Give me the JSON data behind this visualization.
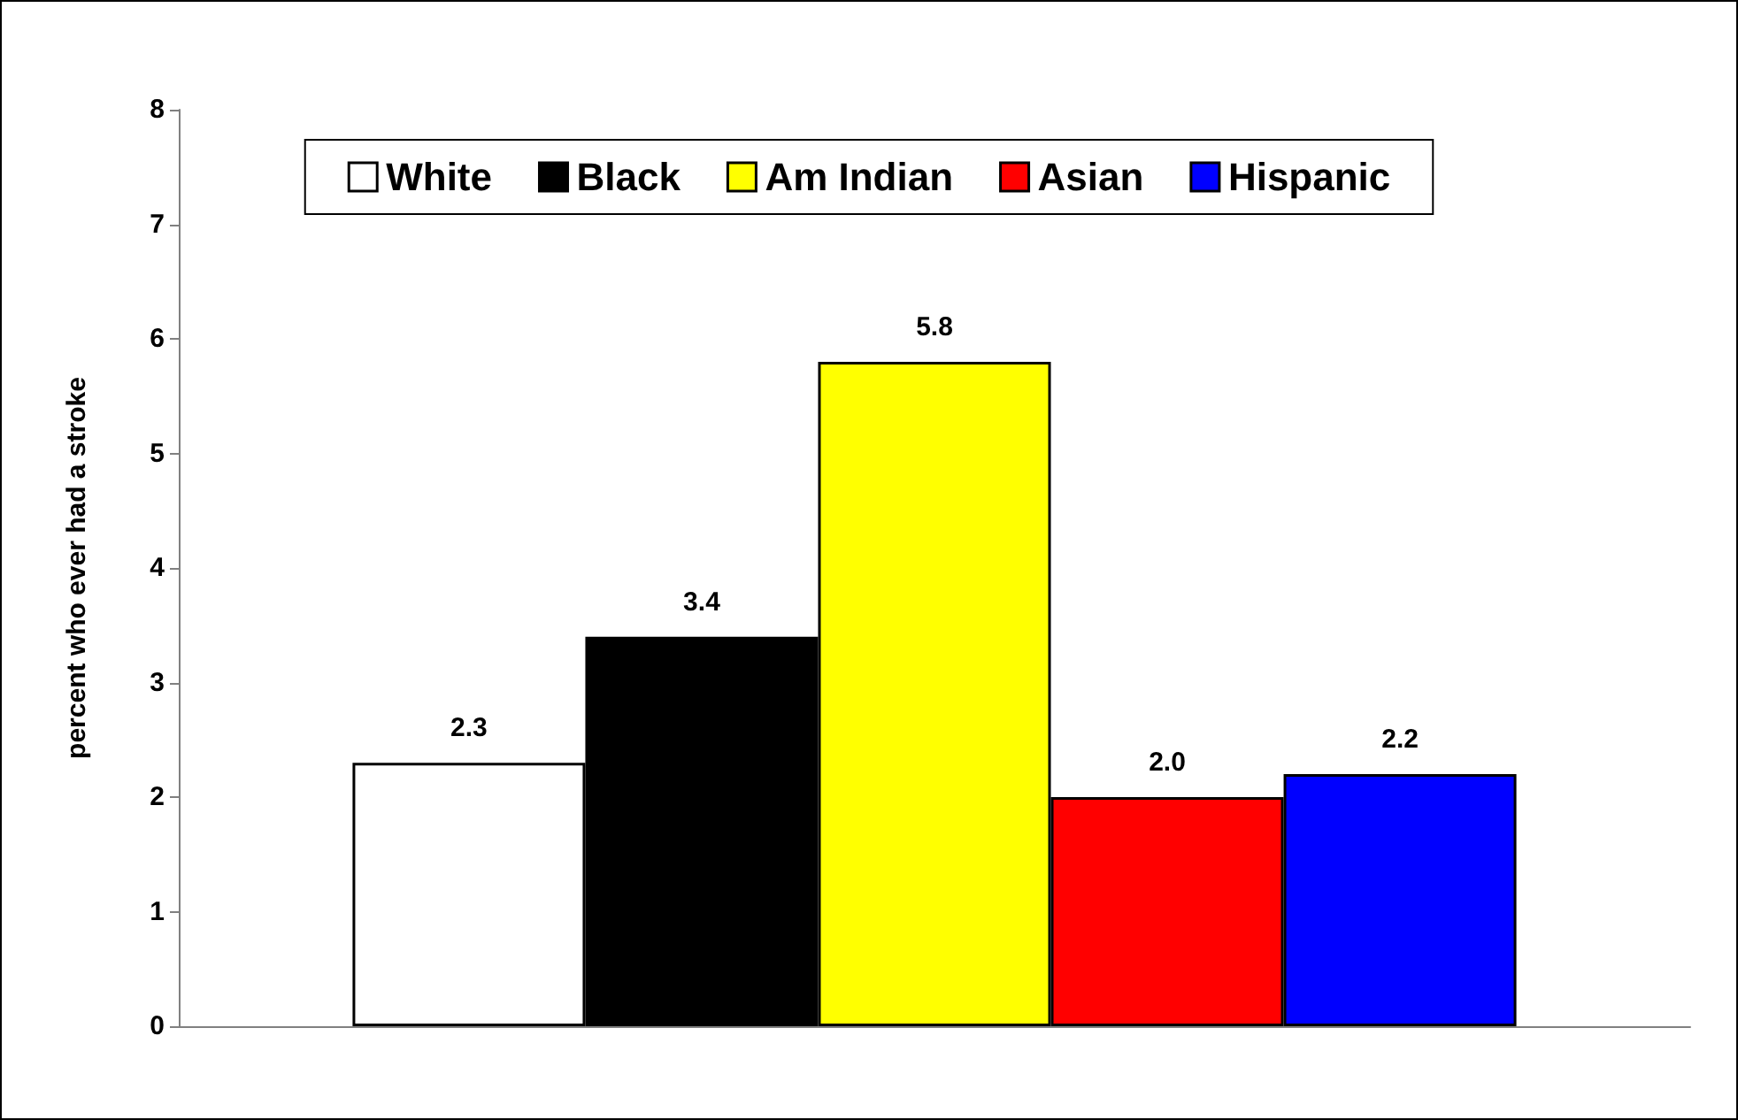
{
  "chart_data": {
    "type": "bar",
    "ylabel": "percent who ever had a stroke",
    "categories": [
      null
    ],
    "series": [
      {
        "name": "White",
        "color": "#ffffff",
        "values": [
          2.3
        ],
        "value_labels": [
          "2.3"
        ]
      },
      {
        "name": "Black",
        "color": "#000000",
        "values": [
          3.4
        ],
        "value_labels": [
          "3.4"
        ]
      },
      {
        "name": "Am Indian",
        "color": "#ffff00",
        "values": [
          5.8
        ],
        "value_labels": [
          "5.8"
        ]
      },
      {
        "name": "Asian",
        "color": "#ff0000",
        "values": [
          2.0
        ],
        "value_labels": [
          "2.0"
        ]
      },
      {
        "name": "Hispanic",
        "color": "#0000ff",
        "values": [
          2.2
        ],
        "value_labels": [
          "2.2"
        ]
      }
    ],
    "ylim": [
      0,
      8
    ],
    "yticks": [
      0,
      1,
      2,
      3,
      4,
      5,
      6,
      7,
      8
    ],
    "grid": false,
    "legend": "top"
  }
}
